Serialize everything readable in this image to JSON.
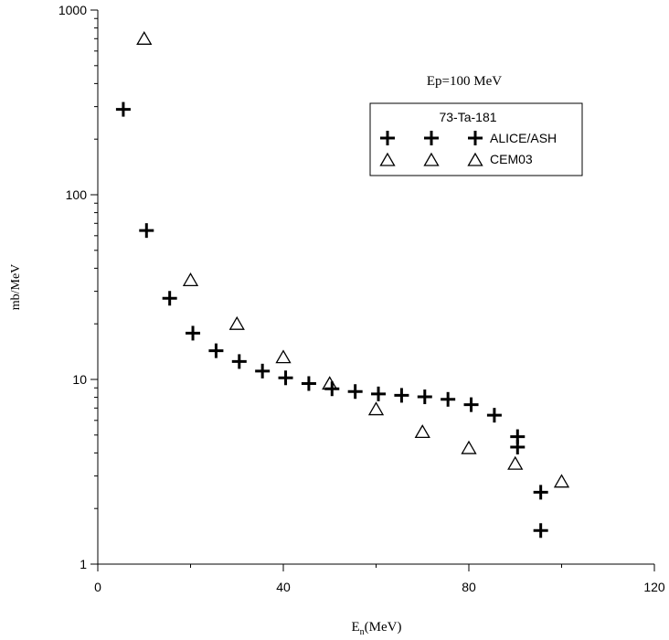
{
  "chart_data": {
    "type": "scatter",
    "title": "",
    "annotation": "Ep=100 MeV",
    "xlabel_main": "E",
    "xlabel_sub": "n",
    "xlabel_unit": "(MeV)",
    "ylabel": "mb/MeV",
    "xlim": [
      0,
      120
    ],
    "ylim": [
      1,
      1000
    ],
    "yscale": "log",
    "x_ticks": [
      "0",
      "40",
      "80",
      "120"
    ],
    "y_ticks": [
      "1",
      "10",
      "100",
      "1000"
    ],
    "legend": {
      "title": "73-Ta-181",
      "placement": "upper-right"
    },
    "series": [
      {
        "name": "ALICE/ASH",
        "marker": "plus",
        "x": [
          5.5,
          10.5,
          15.5,
          20.5,
          25.5,
          30.5,
          35.5,
          40.5,
          45.5,
          50.5,
          55.5,
          60.5,
          65.5,
          70.5,
          75.5,
          80.5,
          85.5,
          90.5,
          90.5,
          95.5,
          95.5
        ],
        "y": [
          290,
          64,
          27.5,
          17.8,
          14.3,
          12.5,
          11.1,
          10.2,
          9.5,
          8.9,
          8.6,
          8.35,
          8.2,
          8.05,
          7.8,
          7.3,
          6.4,
          4.9,
          4.3,
          2.45,
          1.52
        ]
      },
      {
        "name": "CEM03",
        "marker": "triangle",
        "x": [
          10,
          20,
          30,
          40,
          50,
          60,
          70,
          80,
          90,
          100
        ],
        "y": [
          700,
          34.5,
          20,
          13.2,
          9.5,
          6.9,
          5.2,
          4.25,
          3.5,
          2.8
        ]
      }
    ]
  }
}
